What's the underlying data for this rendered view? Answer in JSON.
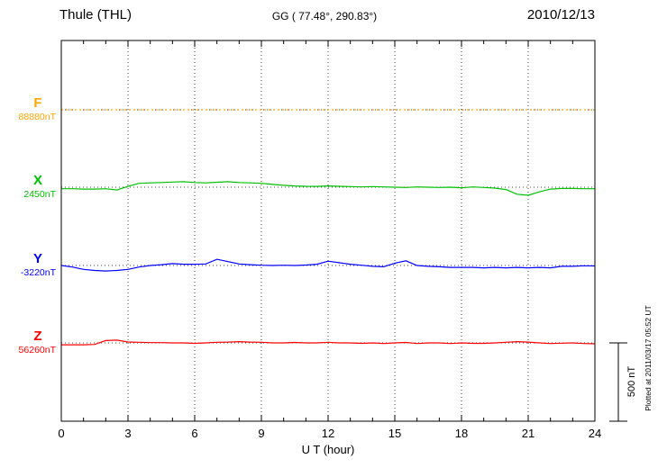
{
  "header": {
    "station": "Thule (THL)",
    "coords": "GG ( 77.48°, 290.83°)",
    "date": "2010/12/13"
  },
  "footer": {
    "plotted_at": "Plotted at 2011/03/17 05:52 UT"
  },
  "chart_data": {
    "type": "line",
    "title": "Thule (THL) magnetogram 2010/12/13",
    "xlabel": "U T (hour)",
    "x_range": [
      0,
      24
    ],
    "x_ticks": [
      0,
      3,
      6,
      9,
      12,
      15,
      18,
      21,
      24
    ],
    "x_step_hours": 0.5,
    "scale_label": "500 nT",
    "scale_nT": 500,
    "grid": "vertical dotted lines every 3 hours; dotted horizontal baseline per component",
    "series": [
      {
        "name": "F",
        "baseline_label": "88880nT",
        "baseline_nT": 88880,
        "color": "#FFA500",
        "style": "dotted",
        "offsets_nT": [
          0,
          0,
          0,
          0,
          0,
          0,
          0,
          0,
          0,
          0,
          0,
          0,
          0,
          0,
          0,
          0,
          0,
          0,
          0,
          0,
          0,
          0,
          0,
          0,
          0,
          0,
          0,
          0,
          0,
          0,
          0,
          0,
          0,
          0,
          0,
          0,
          0,
          0,
          0,
          0,
          0,
          0,
          0,
          0,
          0,
          0,
          0,
          0,
          0
        ]
      },
      {
        "name": "X",
        "baseline_label": "2450nT",
        "baseline_nT": 2450,
        "color": "#00C000",
        "style": "solid",
        "offsets_nT": [
          -10,
          -10,
          -12,
          -12,
          -10,
          -18,
          5,
          25,
          28,
          30,
          33,
          35,
          30,
          28,
          32,
          35,
          30,
          28,
          25,
          18,
          12,
          8,
          6,
          5,
          8,
          6,
          4,
          2,
          4,
          2,
          0,
          -2,
          2,
          0,
          -2,
          0,
          -4,
          2,
          -2,
          -6,
          -15,
          -45,
          -52,
          -30,
          -12,
          -8,
          -8,
          -10,
          -10
        ]
      },
      {
        "name": "Y",
        "baseline_label": "-3220nT",
        "baseline_nT": -3220,
        "color": "#0000FF",
        "style": "solid",
        "offsets_nT": [
          0,
          -10,
          -25,
          -32,
          -35,
          -32,
          -25,
          -10,
          0,
          5,
          12,
          8,
          8,
          10,
          40,
          25,
          10,
          5,
          2,
          0,
          2,
          0,
          3,
          8,
          28,
          18,
          8,
          2,
          -5,
          -8,
          15,
          30,
          0,
          -5,
          -8,
          -12,
          -12,
          -12,
          -15,
          -12,
          -15,
          -12,
          -15,
          -12,
          -15,
          -5,
          -5,
          -2,
          -3
        ]
      },
      {
        "name": "Z",
        "baseline_label": "56260nT",
        "baseline_nT": 56260,
        "color": "#FF0000",
        "style": "solid",
        "offsets_nT": [
          -12,
          -12,
          -12,
          -10,
          15,
          18,
          6,
          4,
          2,
          2,
          0,
          0,
          -3,
          0,
          4,
          5,
          8,
          5,
          4,
          0,
          0,
          3,
          0,
          0,
          4,
          0,
          0,
          -3,
          0,
          -4,
          0,
          3,
          -4,
          0,
          0,
          -4,
          0,
          -3,
          -3,
          0,
          4,
          8,
          5,
          0,
          -4,
          -2,
          0,
          -4,
          -6
        ]
      }
    ]
  }
}
